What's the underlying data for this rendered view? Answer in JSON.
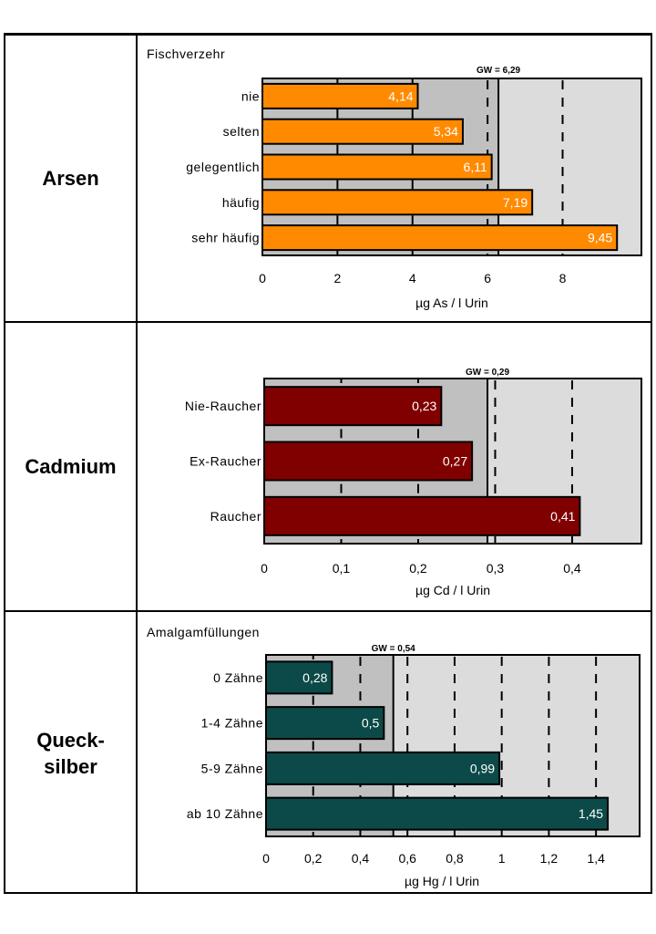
{
  "chart_data": [
    {
      "type": "bar",
      "orientation": "horizontal",
      "metal": "Arsen",
      "group_title": "Fischverzehr",
      "categories": [
        "nie",
        "selten",
        "gelegentlich",
        "häufig",
        "sehr häufig"
      ],
      "values": [
        4.14,
        5.34,
        6.11,
        7.19,
        9.45
      ],
      "value_labels": [
        "4,14",
        "5,34",
        "6,11",
        "7,19",
        "9,45"
      ],
      "xlabel": "µg As / l Urin",
      "xlim": [
        0,
        10.1
      ],
      "xticks": [
        0,
        2,
        4,
        6,
        8
      ],
      "xtick_labels": [
        "0",
        "2",
        "4",
        "6",
        "8"
      ],
      "dashed_gridlines": [
        6,
        8
      ],
      "reference": {
        "label": "GW = 6,29",
        "value": 6.29
      },
      "bar_color": "#ff8a00"
    },
    {
      "type": "bar",
      "orientation": "horizontal",
      "metal": "Cadmium",
      "group_title": "",
      "categories": [
        "Nie-Raucher",
        "Ex-Raucher",
        "Raucher"
      ],
      "values": [
        0.23,
        0.27,
        0.41
      ],
      "value_labels": [
        "0,23",
        "0,27",
        "0,41"
      ],
      "xlabel": "µg Cd / l Urin",
      "xlim": [
        0,
        0.49
      ],
      "xticks": [
        0,
        0.1,
        0.2,
        0.3,
        0.4
      ],
      "xtick_labels": [
        "0",
        "0,1",
        "0,2",
        "0,3",
        "0,4"
      ],
      "dashed_gridlines": [
        0.3,
        0.4
      ],
      "reference": {
        "label": "GW = 0,29",
        "value": 0.29
      },
      "bar_color": "#800000"
    },
    {
      "type": "bar",
      "orientation": "horizontal",
      "metal": "Queck-\nsilber",
      "group_title": "Amalgamfüllungen",
      "categories": [
        "0 Zähne",
        "1-4 Zähne",
        "5-9 Zähne",
        "ab 10 Zähne"
      ],
      "values": [
        0.28,
        0.5,
        0.99,
        1.45
      ],
      "value_labels": [
        "0,28",
        "0,5",
        "0,99",
        "1,45"
      ],
      "xlabel": "µg Hg / l Urin",
      "xlim": [
        0,
        1.585
      ],
      "xticks": [
        0,
        0.2,
        0.4,
        0.6,
        0.8,
        1,
        1.2,
        1.4
      ],
      "xtick_labels": [
        "0",
        "0,2",
        "0,4",
        "0,6",
        "0,8",
        "1",
        "1,2",
        "1,4"
      ],
      "dashed_gridlines": [
        0.4,
        0.6,
        0.8,
        1,
        1.2,
        1.4
      ],
      "reference": {
        "label": "GW = 0,54",
        "value": 0.54
      },
      "bar_color": "#0b4a48"
    }
  ],
  "colors": {
    "below_reference": "#c0c0c0",
    "above_reference": "#dcdcdc",
    "value_label": "#ffffff"
  }
}
